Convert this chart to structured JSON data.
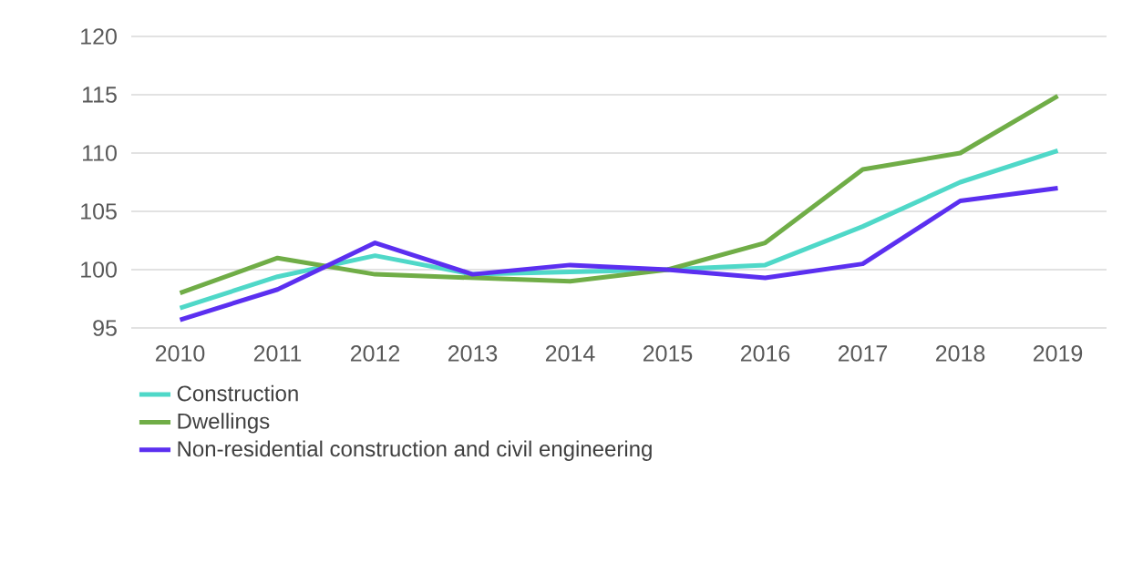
{
  "chart_data": {
    "type": "line",
    "categories": [
      "2010",
      "2011",
      "2012",
      "2013",
      "2014",
      "2015",
      "2016",
      "2017",
      "2018",
      "2019"
    ],
    "series": [
      {
        "name": "Construction",
        "color": "#4fd8c8",
        "values": [
          96.7,
          99.4,
          101.2,
          99.6,
          99.8,
          100,
          100.4,
          103.7,
          107.5,
          110.2
        ]
      },
      {
        "name": "Dwellings",
        "color": "#70ad47",
        "values": [
          98.0,
          101.0,
          99.6,
          99.3,
          99.0,
          100,
          102.3,
          108.6,
          110.0,
          114.9
        ]
      },
      {
        "name": "Non-residential construction and civil engineering",
        "color": "#5b2ff0",
        "values": [
          95.7,
          98.3,
          102.3,
          99.6,
          100.4,
          100,
          99.3,
          100.5,
          105.9,
          107.0
        ]
      }
    ],
    "ylim": [
      95,
      120
    ],
    "yticks": [
      95,
      100,
      105,
      110,
      115,
      120
    ],
    "grid": "y",
    "legend": "bottom"
  }
}
